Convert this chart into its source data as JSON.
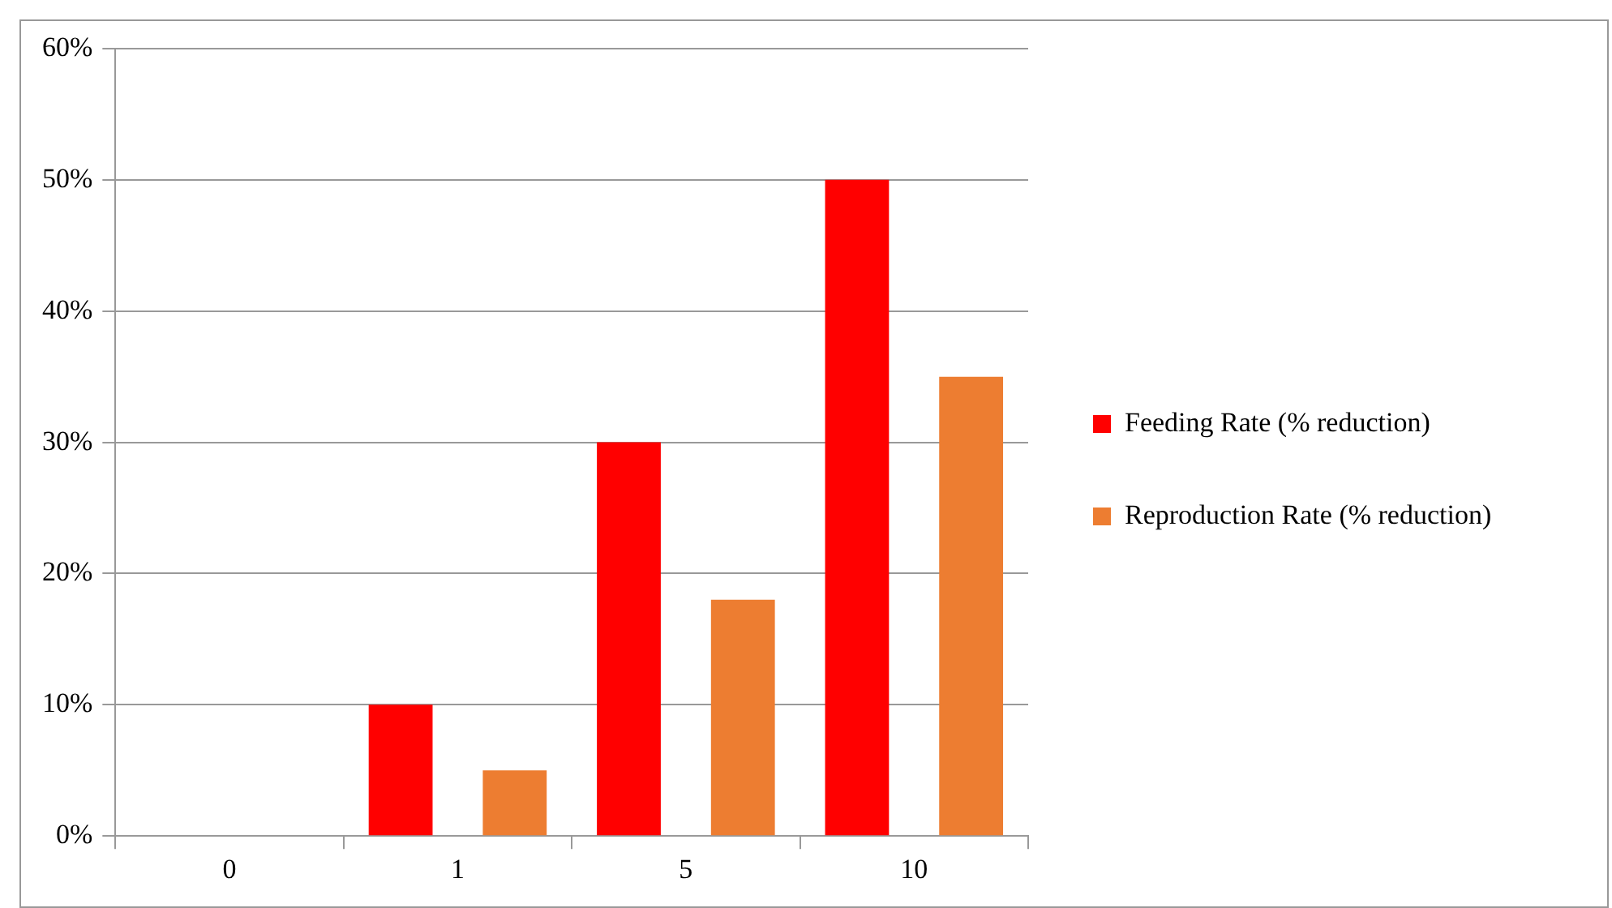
{
  "chart_data": {
    "type": "bar",
    "categories": [
      "0",
      "1",
      "5",
      "10"
    ],
    "series": [
      {
        "name": "Feeding Rate (% reduction)",
        "color": "#ff0000",
        "values": [
          0,
          10,
          30,
          50
        ]
      },
      {
        "name": "Reproduction Rate (% reduction)",
        "color": "#ed7d31",
        "values": [
          0,
          5,
          18,
          35
        ]
      }
    ],
    "ylim": [
      0,
      60
    ],
    "yticks": [
      {
        "value": 0,
        "label": "0%"
      },
      {
        "value": 10,
        "label": "10%"
      },
      {
        "value": 20,
        "label": "20%"
      },
      {
        "value": 30,
        "label": "30%"
      },
      {
        "value": 40,
        "label": "40%"
      },
      {
        "value": 50,
        "label": "50%"
      },
      {
        "value": 60,
        "label": "60%"
      }
    ],
    "grid": "y",
    "legend": "right"
  }
}
